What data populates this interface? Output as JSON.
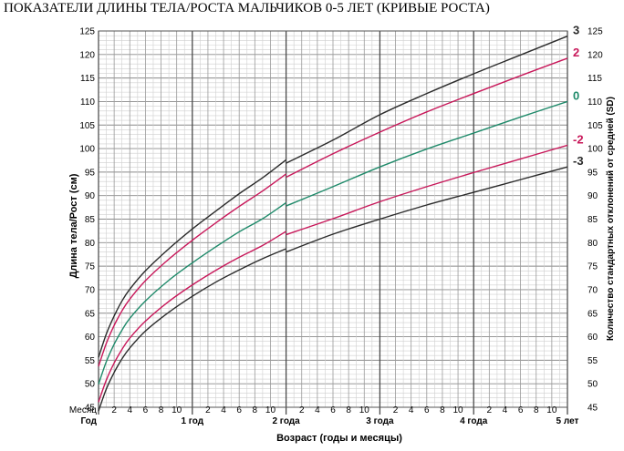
{
  "title": "ПОКАЗАТЕЛИ ДЛИНЫ ТЕЛА/РОСТА МАЛЬЧИКОВ 0-5 ЛЕТ (КРИВЫЕ РОСТА)",
  "chart_data": {
    "type": "line",
    "ylabel_left": "Длина тела/Рост (см)",
    "ylabel_right": "Количество стандартных отклонений от средней (SD)",
    "xlabel": "Возраст (годы и месяцы)",
    "x_row_labels": {
      "month": "Месяц",
      "year": "Год"
    },
    "x_range_months": [
      0,
      60
    ],
    "ylim": [
      45,
      125
    ],
    "y_ticks": [
      45,
      50,
      55,
      60,
      65,
      70,
      75,
      80,
      85,
      90,
      95,
      100,
      105,
      110,
      115,
      120,
      125
    ],
    "month_ticks": [
      "2",
      "4",
      "6",
      "8",
      "10"
    ],
    "year_ticks": [
      {
        "month": 12,
        "label": "1 год"
      },
      {
        "month": 24,
        "label": "2 года"
      },
      {
        "month": 36,
        "label": "3 года"
      },
      {
        "month": 48,
        "label": "4 года"
      },
      {
        "month": 60,
        "label": "5 лет"
      }
    ],
    "grid": true,
    "x": [
      0,
      1,
      2,
      3,
      4,
      6,
      9,
      12,
      15,
      18,
      21,
      24,
      30,
      36,
      42,
      48,
      54,
      60
    ],
    "series": [
      {
        "name": "3",
        "color": "#2b2b2b",
        "break_at": 24,
        "values": [
          55.6,
          60.6,
          64.4,
          67.6,
          70.1,
          74.0,
          78.7,
          82.9,
          86.7,
          90.4,
          93.8,
          96.9,
          101.8,
          107.2,
          111.7,
          115.9,
          119.9,
          123.9
        ]
      },
      {
        "name": "2",
        "color": "#c8185a",
        "break_at": 24,
        "values": [
          53.7,
          58.6,
          62.4,
          65.5,
          68.0,
          71.9,
          76.5,
          80.5,
          84.2,
          87.7,
          91.0,
          93.9,
          98.9,
          103.5,
          107.8,
          111.7,
          115.5,
          119.2
        ]
      },
      {
        "name": "0",
        "color": "#1f8a6a",
        "break_at": 24,
        "values": [
          49.9,
          54.7,
          58.4,
          61.4,
          63.9,
          67.6,
          72.0,
          75.7,
          79.1,
          82.3,
          85.1,
          87.8,
          91.9,
          96.1,
          99.9,
          103.3,
          106.7,
          110.0
        ]
      },
      {
        "name": "-2",
        "color": "#c8185a",
        "break_at": 24,
        "values": [
          46.1,
          50.8,
          54.4,
          57.3,
          59.7,
          63.3,
          67.5,
          71.0,
          74.1,
          76.9,
          79.4,
          81.7,
          85.1,
          88.7,
          91.9,
          94.9,
          97.8,
          100.7
        ]
      },
      {
        "name": "-3",
        "color": "#2b2b2b",
        "break_at": 24,
        "values": [
          44.2,
          48.9,
          52.4,
          55.3,
          57.6,
          61.2,
          65.2,
          68.6,
          71.6,
          74.2,
          76.6,
          78.0,
          81.8,
          85.0,
          88.0,
          90.7,
          93.4,
          96.1
        ]
      }
    ]
  }
}
